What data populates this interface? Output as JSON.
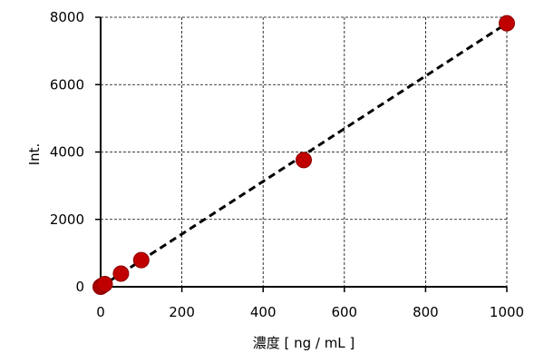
{
  "chart_data": {
    "type": "scatter",
    "title": "",
    "xlabel": "濃度 [ ng / mL ]",
    "ylabel": "Int.",
    "xlim": [
      0,
      1000
    ],
    "ylim": [
      0,
      8000
    ],
    "x_ticks": [
      0,
      200,
      400,
      600,
      800,
      1000
    ],
    "y_ticks": [
      0,
      2000,
      4000,
      6000,
      8000
    ],
    "x_tick_labels": [
      "0",
      "200",
      "400",
      "600",
      "800",
      "1000"
    ],
    "y_tick_labels": [
      "0",
      "2000",
      "4000",
      "6000",
      "8000"
    ],
    "grid": true,
    "legend": "none",
    "series": [
      {
        "x": [
          0,
          1,
          5,
          10,
          50,
          100,
          500,
          1000
        ],
        "y": [
          0,
          10,
          40,
          80,
          390,
          790,
          3760,
          7820
        ],
        "marker": "circle",
        "color": "#c00000",
        "marker_edge_color": "#8b0000"
      }
    ],
    "trendline": {
      "style": "dashed",
      "color": "#000000",
      "x": [
        0,
        1000
      ],
      "y": [
        0,
        7820
      ]
    }
  }
}
